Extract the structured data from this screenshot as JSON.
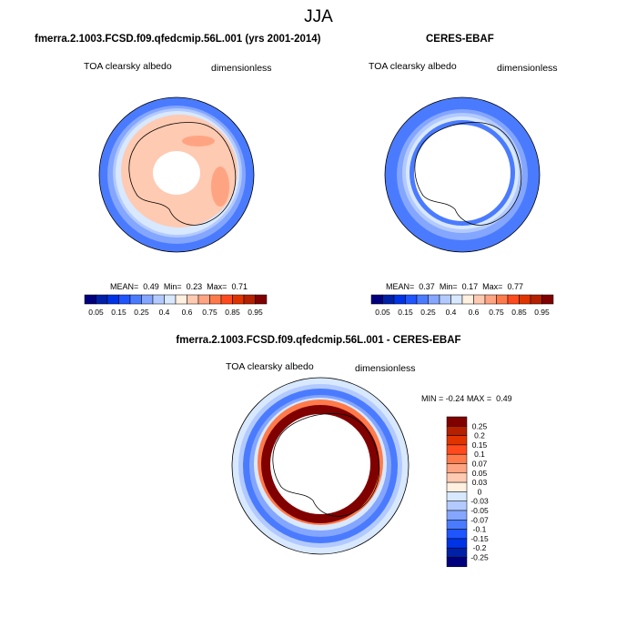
{
  "figure": {
    "title": "JJA"
  },
  "panels": [
    {
      "title": "fmerra.2.1003.FCSD.f09.qfedcmip.56L.001 (yrs 2001-2014)",
      "variable": "TOA clearsky albedo",
      "units": "dimensionless",
      "stats": {
        "mean_label": "MEAN=",
        "mean": "0.49",
        "min_label": "Min=",
        "min": "0.23",
        "max_label": "Max=",
        "max": "0.71"
      }
    },
    {
      "title": "CERES-EBAF",
      "variable": "TOA clearsky albedo",
      "units": "dimensionless",
      "stats": {
        "mean_label": "MEAN=",
        "mean": "0.37",
        "min_label": "Min=",
        "min": "0.17",
        "max_label": "Max=",
        "max": "0.77"
      }
    },
    {
      "title": "fmerra.2.1003.FCSD.f09.qfedcmip.56L.001 - CERES-EBAF",
      "variable": "TOA clearsky albedo",
      "units": "dimensionless",
      "stats": {
        "min_label": "MIN =",
        "min": "-0.24",
        "max_label": "MAX =",
        "max": "0.49"
      }
    }
  ],
  "colorbar_abs": {
    "labels": [
      "0.05",
      "0.15",
      "0.25",
      "0.4",
      "0.6",
      "0.75",
      "0.85",
      "0.95"
    ],
    "colors": [
      "#00007f",
      "#0020a8",
      "#0033e6",
      "#1f55ff",
      "#4a7bff",
      "#84a6ff",
      "#b2caff",
      "#d8e8ff",
      "#fff0e0",
      "#ffcab2",
      "#ffa482",
      "#ff7a4a",
      "#ff4a1e",
      "#e03400",
      "#b42000",
      "#800000"
    ]
  },
  "colorbar_diff": {
    "labels": [
      "0.25",
      "0.2",
      "0.15",
      "0.1",
      "0.07",
      "0.05",
      "0.03",
      "0",
      "-0.03",
      "-0.05",
      "-0.07",
      "-0.1",
      "-0.15",
      "-0.2",
      "-0.25"
    ],
    "colors": [
      "#800000",
      "#b42000",
      "#e03400",
      "#ff4a1e",
      "#ff7a4a",
      "#ffa482",
      "#ffcab2",
      "#fff0e0",
      "#d8e8ff",
      "#b2caff",
      "#84a6ff",
      "#4a7bff",
      "#1f55ff",
      "#0033e6",
      "#0020a8",
      "#00007f"
    ]
  }
}
